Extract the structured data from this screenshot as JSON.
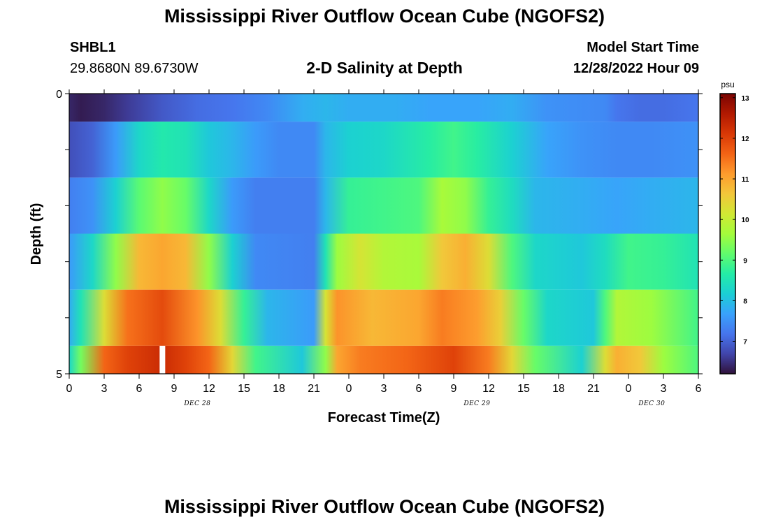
{
  "header": {
    "title": "Mississippi River Outflow Ocean Cube (NGOFS2)",
    "station_id": "SHBL1",
    "station_coords": "29.8680N  89.6730W",
    "subtitle": "2-D Salinity at Depth",
    "model_start_label": "Model Start Time",
    "model_start_value": "12/28/2022 Hour 09"
  },
  "footer": {
    "title": "Mississippi River Outflow Ocean Cube (NGOFS2)"
  },
  "chart_data": {
    "type": "heatmap",
    "title": "2-D Salinity at Depth",
    "xlabel": "Forecast Time(Z)",
    "ylabel": "Depth (ft)",
    "x_tick_labels": [
      "0",
      "3",
      "6",
      "9",
      "12",
      "15",
      "18",
      "21",
      "0",
      "3",
      "6",
      "9",
      "12",
      "15",
      "18",
      "21",
      "0",
      "3",
      "6"
    ],
    "x_range_hours": [
      0,
      54
    ],
    "date_labels": [
      {
        "label": "DEC 28",
        "hour": 11
      },
      {
        "label": "DEC 29",
        "hour": 35
      },
      {
        "label": "DEC 30",
        "hour": 50
      }
    ],
    "y_range": [
      0,
      5
    ],
    "y_tick_labels": [
      "0",
      "5"
    ],
    "colorbar": {
      "unit": "psu",
      "min": 6.2,
      "max": 13.1,
      "tick_labels": [
        "7",
        "8",
        "9",
        "10",
        "11",
        "12",
        "13"
      ],
      "colors": [
        "#30123b",
        "#4145ab",
        "#4675ed",
        "#39a2fc",
        "#1bcfd4",
        "#24eca6",
        "#61fc6c",
        "#a4fc3b",
        "#d1e834",
        "#f3c63a",
        "#fe9b2d",
        "#f36315",
        "#d93806",
        "#b11901",
        "#7a0402"
      ]
    },
    "missing_marker_hour": 8,
    "depth_layers": [
      {
        "depth_top": 0,
        "depth_bottom": 0.5,
        "keyframes": [
          [
            0,
            6.4
          ],
          [
            1,
            6.3
          ],
          [
            3,
            6.4
          ],
          [
            5,
            6.6
          ],
          [
            8,
            6.9
          ],
          [
            11,
            7.1
          ],
          [
            14,
            7.2
          ],
          [
            17,
            7.4
          ],
          [
            20,
            7.8
          ],
          [
            22,
            7.9
          ],
          [
            24,
            7.8
          ],
          [
            28,
            7.8
          ],
          [
            31,
            7.7
          ],
          [
            33,
            7.7
          ],
          [
            35,
            7.7
          ],
          [
            38,
            7.8
          ],
          [
            41,
            7.5
          ],
          [
            46,
            7.4
          ],
          [
            47,
            7.2
          ],
          [
            49,
            7.1
          ],
          [
            51,
            7.1
          ],
          [
            54,
            7.2
          ]
        ]
      },
      {
        "depth_top": 0.5,
        "depth_bottom": 1.5,
        "keyframes": [
          [
            0,
            6.8
          ],
          [
            2,
            7.0
          ],
          [
            4,
            7.6
          ],
          [
            6,
            8.3
          ],
          [
            8,
            8.6
          ],
          [
            10,
            8.5
          ],
          [
            12,
            8.1
          ],
          [
            14,
            7.9
          ],
          [
            16,
            7.6
          ],
          [
            18,
            7.4
          ],
          [
            21,
            7.4
          ],
          [
            22,
            7.9
          ],
          [
            24,
            8.2
          ],
          [
            27,
            8.3
          ],
          [
            31,
            8.7
          ],
          [
            33,
            8.9
          ],
          [
            35,
            8.7
          ],
          [
            38,
            8.2
          ],
          [
            41,
            7.7
          ],
          [
            44,
            7.5
          ],
          [
            47,
            7.4
          ],
          [
            50,
            7.4
          ],
          [
            54,
            7.5
          ]
        ]
      },
      {
        "depth_top": 1.5,
        "depth_bottom": 2.5,
        "keyframes": [
          [
            0,
            7.3
          ],
          [
            2,
            7.5
          ],
          [
            4,
            8.2
          ],
          [
            6,
            9.1
          ],
          [
            8,
            9.5
          ],
          [
            10,
            9.2
          ],
          [
            12,
            8.3
          ],
          [
            14,
            7.6
          ],
          [
            16,
            7.3
          ],
          [
            21,
            7.3
          ],
          [
            22,
            7.9
          ],
          [
            24,
            8.8
          ],
          [
            27,
            8.9
          ],
          [
            30,
            9.0
          ],
          [
            32,
            9.7
          ],
          [
            34,
            9.5
          ],
          [
            36,
            8.8
          ],
          [
            38,
            8.4
          ],
          [
            40,
            7.9
          ],
          [
            44,
            7.8
          ],
          [
            47,
            7.7
          ],
          [
            50,
            7.8
          ],
          [
            54,
            7.9
          ]
        ]
      },
      {
        "depth_top": 2.5,
        "depth_bottom": 3.5,
        "keyframes": [
          [
            0,
            7.6
          ],
          [
            2,
            8.3
          ],
          [
            4,
            9.5
          ],
          [
            6,
            10.8
          ],
          [
            8,
            11.0
          ],
          [
            10,
            10.8
          ],
          [
            12,
            9.5
          ],
          [
            14,
            8.2
          ],
          [
            16,
            7.4
          ],
          [
            21,
            7.3
          ],
          [
            22,
            8.5
          ],
          [
            23,
            9.6
          ],
          [
            25,
            10.2
          ],
          [
            27,
            9.8
          ],
          [
            30,
            9.7
          ],
          [
            32,
            10.6
          ],
          [
            34,
            10.9
          ],
          [
            36,
            10.3
          ],
          [
            38,
            9.0
          ],
          [
            40,
            8.3
          ],
          [
            44,
            8.1
          ],
          [
            46,
            8.4
          ],
          [
            48,
            8.9
          ],
          [
            51,
            8.8
          ],
          [
            54,
            8.5
          ]
        ]
      },
      {
        "depth_top": 3.5,
        "depth_bottom": 4.5,
        "keyframes": [
          [
            0,
            7.8
          ],
          [
            1,
            8.5
          ],
          [
            3,
            10.3
          ],
          [
            5,
            11.5
          ],
          [
            8,
            11.9
          ],
          [
            11,
            11.2
          ],
          [
            13,
            10.3
          ],
          [
            15,
            8.8
          ],
          [
            17,
            7.9
          ],
          [
            21,
            7.6
          ],
          [
            22,
            10.2
          ],
          [
            23,
            11.2
          ],
          [
            26,
            10.8
          ],
          [
            30,
            11.0
          ],
          [
            32,
            11.4
          ],
          [
            35,
            11.1
          ],
          [
            37,
            10.5
          ],
          [
            39,
            9.2
          ],
          [
            41,
            8.3
          ],
          [
            45,
            8.1
          ],
          [
            46,
            9.0
          ],
          [
            47,
            9.8
          ],
          [
            50,
            9.6
          ],
          [
            54,
            8.9
          ]
        ]
      },
      {
        "depth_top": 4.5,
        "depth_bottom": 5,
        "keyframes": [
          [
            0,
            8.3
          ],
          [
            1,
            9.3
          ],
          [
            3,
            11.6
          ],
          [
            5,
            12.0
          ],
          [
            8,
            12.3
          ],
          [
            10,
            12.0
          ],
          [
            12,
            11.6
          ],
          [
            14,
            10.4
          ],
          [
            16,
            8.9
          ],
          [
            20,
            8.1
          ],
          [
            22,
            9.5
          ],
          [
            23,
            11.0
          ],
          [
            25,
            11.4
          ],
          [
            29,
            11.6
          ],
          [
            33,
            12.0
          ],
          [
            36,
            11.4
          ],
          [
            38,
            10.4
          ],
          [
            40,
            9.2
          ],
          [
            44,
            8.2
          ],
          [
            46,
            10.3
          ],
          [
            47,
            10.9
          ],
          [
            49,
            10.6
          ],
          [
            51,
            9.6
          ],
          [
            54,
            9.0
          ]
        ]
      }
    ]
  }
}
